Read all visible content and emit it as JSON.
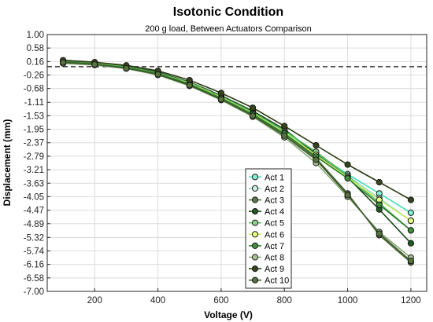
{
  "chart_data": {
    "type": "line",
    "title": "Isotonic Condition",
    "subtitle": "200 g load, Between Actuators Comparison",
    "xlabel": "Voltage (V)",
    "ylabel": "Displacement (mm)",
    "xlim": [
      50,
      1250
    ],
    "ylim": [
      -7.0,
      1.0
    ],
    "xticks": [
      200,
      400,
      600,
      800,
      1000,
      1200
    ],
    "yticks": [
      1.0,
      0.58,
      0.16,
      -0.26,
      -0.68,
      -1.11,
      -1.53,
      -1.95,
      -2.37,
      -2.79,
      -3.21,
      -3.63,
      -4.05,
      -4.47,
      -4.89,
      -5.32,
      -5.74,
      -6.16,
      -6.58,
      -7.0
    ],
    "ytick_labels": [
      "1.00",
      "0.58",
      "0.16",
      "-0.26",
      "-0.68",
      "-1.11",
      "-1.53",
      "-1.95",
      "-2.37",
      "-2.79",
      "-3.21",
      "-3.63",
      "-4.05",
      "-4.47",
      "-4.89",
      "-5.32",
      "-5.74",
      "-6.16",
      "-6.58",
      "-7.00"
    ],
    "grid": true,
    "reference_line": {
      "y": 0,
      "style": "dashed",
      "color": "#333333"
    },
    "legend_position": "lower-center",
    "x": [
      100,
      200,
      300,
      400,
      500,
      600,
      700,
      800,
      900,
      1000,
      1100,
      1200
    ],
    "series": [
      {
        "name": "Act 1",
        "color": "#3fe0b8",
        "marker": "#7ff0d0",
        "values": [
          0.18,
          0.12,
          0.0,
          -0.18,
          -0.5,
          -0.92,
          -1.4,
          -2.0,
          -2.7,
          -3.35,
          -3.95,
          -4.55
        ]
      },
      {
        "name": "Act 2",
        "color": "#9fd8c8",
        "marker": "#cdeee0",
        "values": [
          0.15,
          0.1,
          -0.02,
          -0.2,
          -0.52,
          -0.95,
          -1.45,
          -2.05,
          -2.75,
          -3.4,
          -4.1,
          -4.8
        ]
      },
      {
        "name": "Act 3",
        "color": "#4a6b3a",
        "marker": "#5c7a48",
        "values": [
          0.12,
          0.08,
          -0.04,
          -0.22,
          -0.55,
          -1.0,
          -1.5,
          -2.1,
          -2.85,
          -3.95,
          -5.25,
          -6.1
        ]
      },
      {
        "name": "Act 4",
        "color": "#1a4a1a",
        "marker": "#1f5a20",
        "values": [
          0.16,
          0.12,
          0.0,
          -0.17,
          -0.48,
          -0.9,
          -1.38,
          -1.95,
          -2.72,
          -3.45,
          -4.45,
          -5.5
        ]
      },
      {
        "name": "Act 5",
        "color": "#5cb85c",
        "marker": "#8ed08e",
        "values": [
          0.17,
          0.11,
          -0.01,
          -0.19,
          -0.5,
          -0.93,
          -1.42,
          -2.0,
          -2.65,
          -3.4,
          -4.25,
          -5.1
        ]
      },
      {
        "name": "Act 6",
        "color": "#c8f060",
        "marker": "#e2ff80",
        "values": [
          0.14,
          0.1,
          -0.03,
          -0.21,
          -0.52,
          -0.96,
          -1.46,
          -2.05,
          -2.75,
          -3.45,
          -4.15,
          -4.8
        ]
      },
      {
        "name": "Act 7",
        "color": "#2e7d32",
        "marker": "#3f8f3f",
        "values": [
          0.15,
          0.09,
          -0.03,
          -0.21,
          -0.54,
          -0.98,
          -1.48,
          -2.08,
          -2.8,
          -3.48,
          -4.3,
          -5.1
        ]
      },
      {
        "name": "Act 8",
        "color": "#8aa878",
        "marker": "#a8c298",
        "values": [
          0.1,
          0.05,
          -0.06,
          -0.26,
          -0.6,
          -1.04,
          -1.56,
          -2.2,
          -3.0,
          -4.05,
          -5.15,
          -5.95
        ]
      },
      {
        "name": "Act 9",
        "color": "#2a3a12",
        "marker": "#34451a",
        "values": [
          0.2,
          0.14,
          0.04,
          -0.13,
          -0.42,
          -0.82,
          -1.28,
          -1.85,
          -2.45,
          -3.05,
          -3.6,
          -4.15
        ]
      },
      {
        "name": "Act 10",
        "color": "#3e5a2a",
        "marker": "#56753c",
        "values": [
          0.13,
          0.07,
          -0.05,
          -0.24,
          -0.58,
          -1.02,
          -1.53,
          -2.15,
          -2.9,
          -4.0,
          -5.2,
          -6.05
        ]
      }
    ]
  }
}
